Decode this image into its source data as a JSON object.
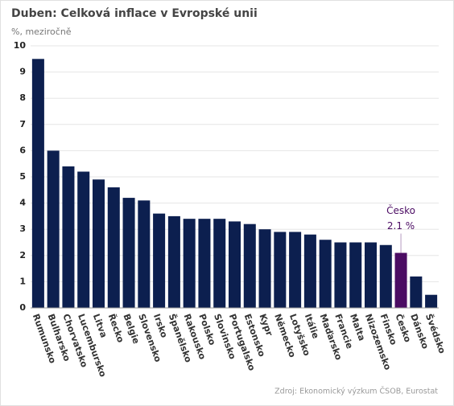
{
  "chart_data": {
    "type": "bar",
    "title": "Duben: Celková inflace v Evropské unii",
    "subtitle": "%, meziročně",
    "source": "Zdroj: Ekonomický výzkum ČSOB, Eurostat",
    "categories": [
      "Rumunsko",
      "Bulharsko",
      "Chorvatsko",
      "Lucembursko",
      "Litva",
      "Řecko",
      "Belgie",
      "Slovensko",
      "Irsko",
      "Španělsko",
      "Rakousko",
      "Polsko",
      "Slovinsko",
      "Portugalsko",
      "Estonsko",
      "Kypr",
      "Německo",
      "Lotyšsko",
      "Itálie",
      "Maďarsko",
      "Francie",
      "Malta",
      "Nizozemsko",
      "Finsko",
      "Česko",
      "Dánsko",
      "Švédsko"
    ],
    "values": [
      9.5,
      6.0,
      5.4,
      5.2,
      4.9,
      4.6,
      4.2,
      4.1,
      3.6,
      3.5,
      3.4,
      3.4,
      3.4,
      3.3,
      3.2,
      3.0,
      2.9,
      2.9,
      2.8,
      2.6,
      2.5,
      2.5,
      2.5,
      2.4,
      2.1,
      1.2,
      0.5
    ],
    "color": "#0c1f4f",
    "highlight_color": "#4b0c63",
    "annotation": {
      "category": "Česko",
      "label": "2.1 %"
    },
    "ylim": [
      0,
      10
    ],
    "yticks": [
      0,
      1,
      2,
      3,
      4,
      5,
      6,
      7,
      8,
      9,
      10
    ],
    "grid": true
  }
}
